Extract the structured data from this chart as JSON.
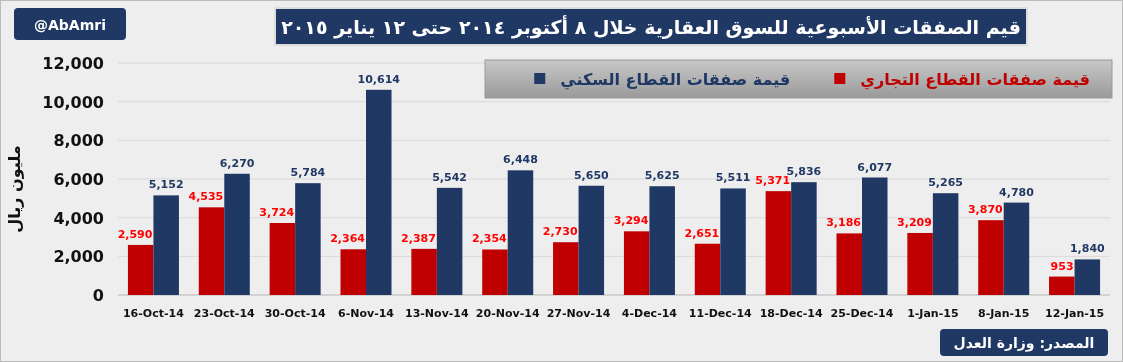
{
  "chart_data": {
    "type": "bar",
    "title": "قيم الصفقات الأسبوعية للسوق العقارية خلال ٨ أكتوبر ٢٠١٤ حتى ١٢ يناير ٢٠١٥",
    "ylabel": "مليون ريال",
    "annotations": [
      "@AbAmri",
      "المصدر: وزارة العدل"
    ],
    "categories": [
      "16-Oct-14",
      "23-Oct-14",
      "30-Oct-14",
      "6-Nov-14",
      "13-Nov-14",
      "20-Nov-14",
      "27-Nov-14",
      "4-Dec-14",
      "11-Dec-14",
      "18-Dec-14",
      "25-Dec-14",
      "1-Jan-15",
      "8-Jan-15",
      "12-Jan-15"
    ],
    "series": [
      {
        "name": "قيمة صفقات القطاع التجاري",
        "color": "#c00000",
        "values": [
          2590,
          4535,
          3724,
          2364,
          2387,
          2354,
          2730,
          3294,
          2651,
          5371,
          3186,
          3209,
          3870,
          953
        ],
        "value_labels": [
          "2,590",
          "4,535",
          "3,724",
          "2,364",
          "2,387",
          "2,354",
          "2,730",
          "3,294",
          "2,651",
          "5,371",
          "3,186",
          "3,209",
          "3,870",
          "953"
        ]
      },
      {
        "name": "قيمة صفقات القطاع السكني",
        "color": "#1f3864",
        "values": [
          5152,
          6270,
          5784,
          10614,
          5542,
          6448,
          5650,
          5625,
          5511,
          5836,
          6077,
          5265,
          4780,
          1840
        ],
        "value_labels": [
          "5,152",
          "6,270",
          "5,784",
          "10,614",
          "5,542",
          "6,448",
          "5,650",
          "5,625",
          "5,511",
          "5,836",
          "6,077",
          "5,265",
          "4,780",
          "1,840"
        ]
      }
    ],
    "ylim": [
      0,
      12000
    ],
    "yticks": [
      {
        "value": 0,
        "label": "0"
      },
      {
        "value": 2000,
        "label": "2,000"
      },
      {
        "value": 4000,
        "label": "4,000"
      },
      {
        "value": 6000,
        "label": "6,000"
      },
      {
        "value": 8000,
        "label": "8,000"
      },
      {
        "value": 10000,
        "label": "10,000"
      },
      {
        "value": 12000,
        "label": "12,000"
      }
    ],
    "grid": "y",
    "legend": "top right"
  }
}
